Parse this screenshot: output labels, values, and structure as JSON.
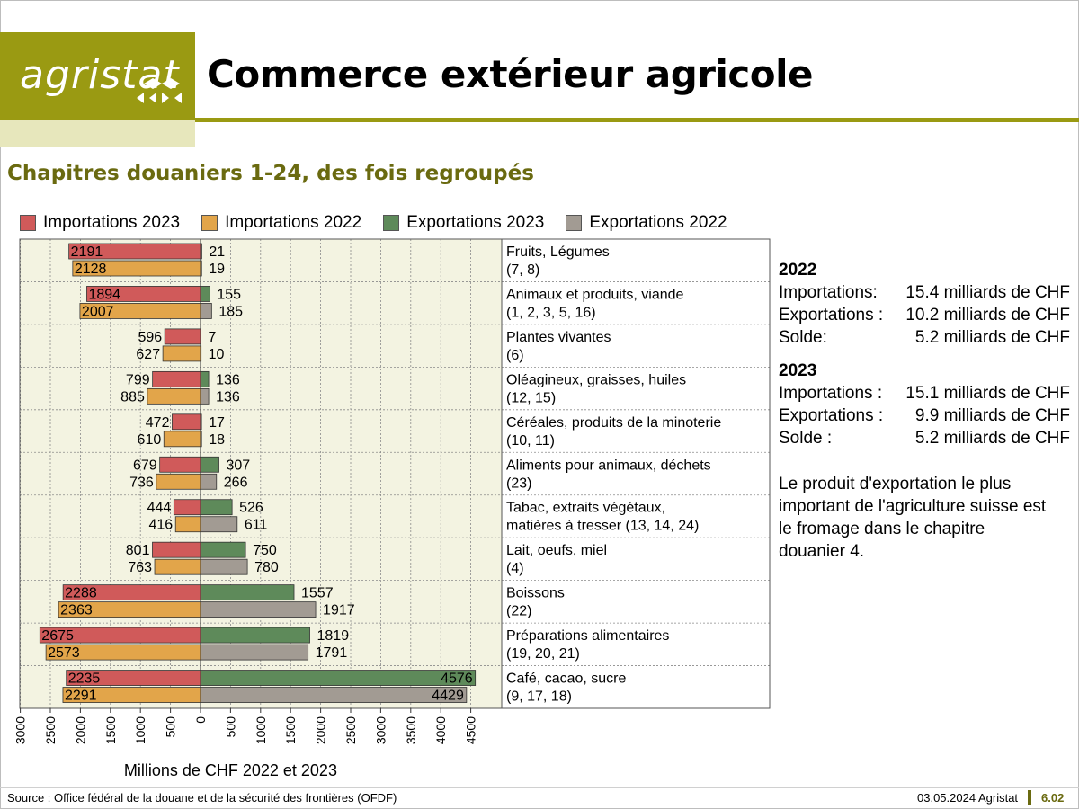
{
  "header": {
    "logo_text": "agristat",
    "title": "Commerce extérieur agricole",
    "subtitle": "Chapitres douaniers 1-24, des fois regroupés"
  },
  "legend": [
    {
      "label": "Importations 2023",
      "color": "#d05a5a"
    },
    {
      "label": "Importations 2022",
      "color": "#e2a54a"
    },
    {
      "label": "Exportations 2023",
      "color": "#5e8a5a"
    },
    {
      "label": "Exportations 2022",
      "color": "#a29b93"
    }
  ],
  "chart_data": {
    "type": "bar",
    "orientation": "horizontal-diverging",
    "categories": [
      {
        "name": "Fruits, Légumes",
        "codes": "(7, 8)"
      },
      {
        "name": "Animaux et produits, viande",
        "codes": "(1, 2, 3, 5, 16)"
      },
      {
        "name": "Plantes vivantes",
        "codes": "(6)"
      },
      {
        "name": "Oléagineux, graisses, huiles",
        "codes": "(12, 15)"
      },
      {
        "name": "Céréales, produits de la minoterie",
        "codes": "(10, 11)"
      },
      {
        "name": "Aliments pour animaux, déchets",
        "codes": "(23)"
      },
      {
        "name": "Tabac, extraits végétaux,",
        "codes": "matières à tresser (13, 14, 24)"
      },
      {
        "name": "Lait, oeufs, miel",
        "codes": "(4)"
      },
      {
        "name": "Boissons",
        "codes": "(22)"
      },
      {
        "name": "Préparations alimentaires",
        "codes": "(19, 20, 21)"
      },
      {
        "name": "Café, cacao, sucre",
        "codes": "(9, 17, 18)"
      }
    ],
    "series": [
      {
        "name": "Importations 2023",
        "values": [
          2191,
          1894,
          596,
          799,
          472,
          679,
          444,
          801,
          2288,
          2675,
          2235
        ]
      },
      {
        "name": "Importations 2022",
        "values": [
          2128,
          2007,
          627,
          885,
          610,
          736,
          416,
          763,
          2363,
          2573,
          2291
        ]
      },
      {
        "name": "Exportations 2023",
        "values": [
          21,
          155,
          7,
          136,
          17,
          307,
          526,
          750,
          1557,
          1819,
          4576
        ]
      },
      {
        "name": "Exportations 2022",
        "values": [
          19,
          185,
          10,
          136,
          18,
          266,
          611,
          780,
          1917,
          1791,
          4429
        ]
      }
    ],
    "xlabel": "Millions de CHF 2022 et 2023",
    "xlim": [
      -3000,
      4800
    ],
    "ticks": [
      "3000",
      "2500",
      "2000",
      "1500",
      "1000",
      "500",
      "0",
      "500",
      "1000",
      "1500",
      "2000",
      "2500",
      "3000",
      "3500",
      "4000",
      "4500"
    ],
    "grid": true
  },
  "summary": {
    "y2022": {
      "year": "2022",
      "rows": [
        {
          "label": "Importations:",
          "value": "15.4 milliards de CHF"
        },
        {
          "label": "Exportations :",
          "value": "10.2 milliards de CHF"
        },
        {
          "label": "Solde:",
          "value": "5.2 milliards de CHF"
        }
      ]
    },
    "y2023": {
      "year": "2023",
      "rows": [
        {
          "label": "Importations :",
          "value": "15.1 milliards de CHF"
        },
        {
          "label": "Exportations :",
          "value": "9.9 milliards de CHF"
        },
        {
          "label": "Solde :",
          "value": "5.2 milliards de CHF"
        }
      ]
    },
    "note": "Le produit d'exportation le plus important de l'agriculture suisse est le fromage dans le chapitre douanier 4."
  },
  "footer": {
    "source": "Source : Office fédéral de la douane et de la sécurité des frontières (OFDF)",
    "date": "03.05.2024 Agristat",
    "page": "6.02"
  }
}
